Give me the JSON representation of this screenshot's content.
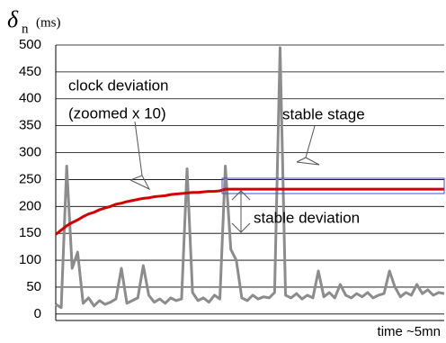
{
  "chart_data": {
    "type": "line",
    "y_label_symbol": "δ",
    "y_label_subscript": "n",
    "y_label_unit": "(ms)",
    "x_label": "time ~5mn",
    "annotations": [
      "clock deviation",
      "(zoomed x 10)",
      "stable stage",
      "stable deviation"
    ],
    "ylim": [
      -12,
      500
    ],
    "yticks": [
      0,
      50,
      100,
      150,
      200,
      250,
      300,
      350,
      400,
      450,
      500
    ],
    "grid": true,
    "series": [
      {
        "color": "#8c8c8c",
        "values": [
          18,
          12,
          275,
          85,
          115,
          20,
          30,
          15,
          25,
          18,
          22,
          28,
          85,
          20,
          25,
          30,
          90,
          35,
          22,
          28,
          20,
          30,
          25,
          28,
          270,
          40,
          25,
          30,
          22,
          35,
          28,
          275,
          120,
          100,
          30,
          25,
          35,
          28,
          32,
          30,
          40,
          495,
          35,
          30,
          38,
          28,
          35,
          30,
          80,
          32,
          40,
          30,
          55,
          35,
          30,
          38,
          32,
          40,
          30,
          35,
          38,
          80,
          50,
          32,
          40,
          35,
          55,
          38,
          45,
          35,
          40,
          38
        ]
      },
      {
        "color": "#d40000",
        "values": [
          148,
          156,
          164,
          170,
          175,
          181,
          186,
          189,
          194,
          197,
          200,
          204,
          206,
          209,
          211,
          213,
          215,
          216,
          218,
          219,
          220,
          222,
          223,
          224,
          225,
          226,
          226,
          227,
          228,
          228,
          229,
          232,
          232,
          232,
          232,
          232,
          232,
          232,
          232,
          232,
          232,
          232,
          232,
          232,
          232,
          232,
          232,
          232,
          232,
          232,
          232,
          232,
          232,
          232,
          232,
          232,
          232,
          232,
          232,
          232,
          232,
          232,
          232,
          232,
          232,
          232,
          232,
          232,
          232,
          232,
          232,
          232
        ]
      }
    ]
  }
}
